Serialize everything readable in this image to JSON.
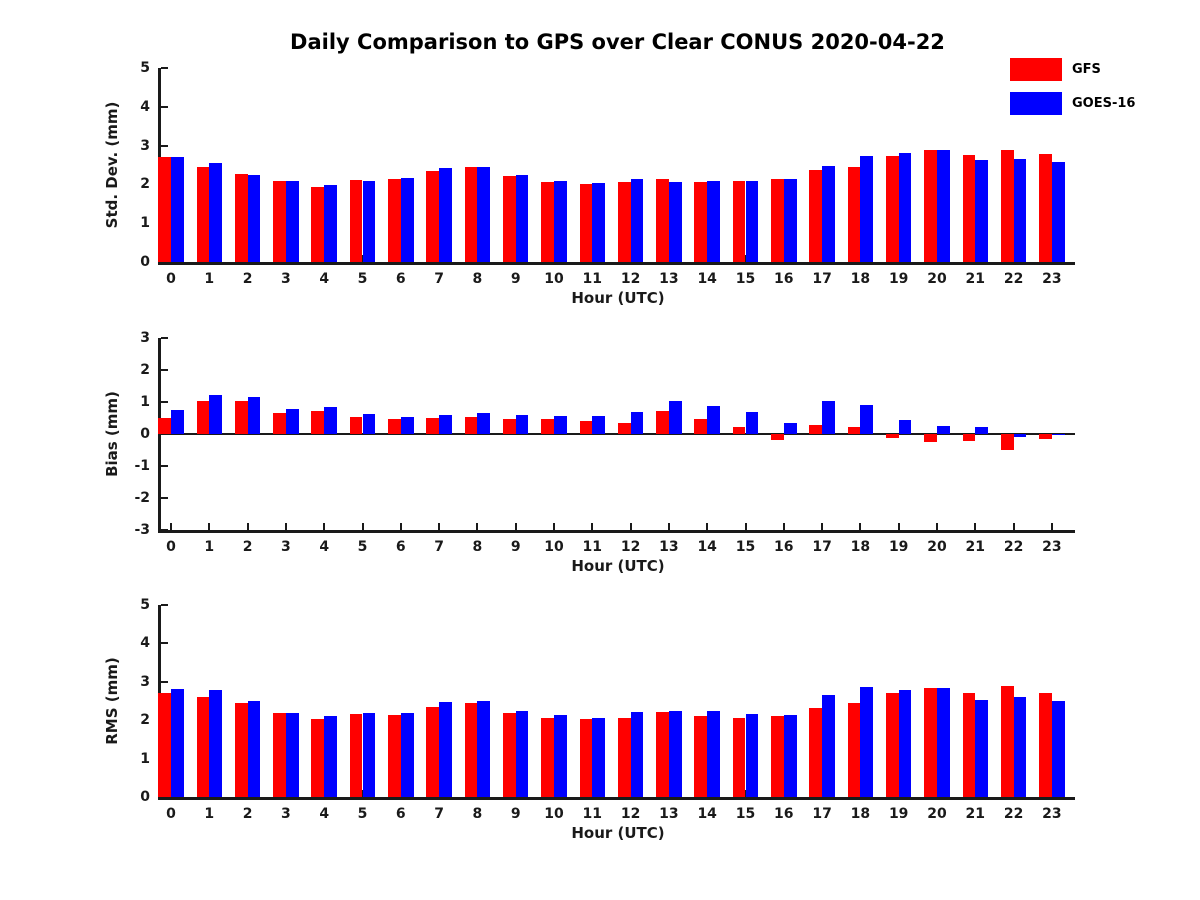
{
  "title": "Daily Comparison to GPS over Clear CONUS 2020-04-22",
  "legend": [
    {
      "label": "GFS",
      "color": "#ff0000"
    },
    {
      "label": "GOES-16",
      "color": "#0000ff"
    }
  ],
  "colors": {
    "gfs_red": "#ff0000",
    "goes_blue": "#0000ff",
    "axis": "#1a1a1a",
    "background": "#ffffff"
  },
  "chart_data": [
    {
      "type": "bar",
      "title": "",
      "ylabel": "Std. Dev. (mm)",
      "xlabel": "Hour (UTC)",
      "ylim": [
        0,
        5
      ],
      "yticks": [
        0,
        1,
        2,
        3,
        4,
        5
      ],
      "grid": false,
      "legend_position": "outside-upper-right",
      "categories": [
        0,
        1,
        2,
        3,
        4,
        5,
        6,
        7,
        8,
        9,
        10,
        11,
        12,
        13,
        14,
        15,
        16,
        17,
        18,
        19,
        20,
        21,
        22,
        23
      ],
      "series": [
        {
          "name": "GFS",
          "color": "#ff0000",
          "values": [
            2.7,
            2.46,
            2.28,
            2.1,
            1.93,
            2.12,
            2.13,
            2.34,
            2.44,
            2.22,
            2.06,
            2.02,
            2.07,
            2.13,
            2.07,
            2.08,
            2.15,
            2.37,
            2.46,
            2.74,
            2.88,
            2.76,
            2.88,
            2.79
          ]
        },
        {
          "name": "GOES-16",
          "color": "#0000ff",
          "values": [
            2.7,
            2.54,
            2.24,
            2.08,
            1.98,
            2.1,
            2.16,
            2.42,
            2.45,
            2.24,
            2.1,
            2.03,
            2.13,
            2.05,
            2.08,
            2.1,
            2.15,
            2.48,
            2.74,
            2.81,
            2.88,
            2.62,
            2.65,
            2.57
          ]
        }
      ]
    },
    {
      "type": "bar",
      "title": "",
      "ylabel": "Bias (mm)",
      "xlabel": "Hour (UTC)",
      "ylim": [
        -3,
        3
      ],
      "yticks": [
        -3,
        -2,
        -1,
        0,
        1,
        2,
        3
      ],
      "grid": false,
      "zero_line": true,
      "categories": [
        0,
        1,
        2,
        3,
        4,
        5,
        6,
        7,
        8,
        9,
        10,
        11,
        12,
        13,
        14,
        15,
        16,
        17,
        18,
        19,
        20,
        21,
        22,
        23
      ],
      "series": [
        {
          "name": "GFS",
          "color": "#ff0000",
          "values": [
            0.5,
            1.02,
            1.02,
            0.65,
            0.73,
            0.54,
            0.46,
            0.51,
            0.52,
            0.46,
            0.48,
            0.41,
            0.34,
            0.73,
            0.46,
            0.23,
            -0.19,
            0.28,
            0.22,
            -0.13,
            -0.26,
            -0.21,
            -0.5,
            -0.15
          ]
        },
        {
          "name": "GOES-16",
          "color": "#0000ff",
          "values": [
            0.75,
            1.22,
            1.16,
            0.78,
            0.85,
            0.63,
            0.53,
            0.6,
            0.65,
            0.59,
            0.55,
            0.56,
            0.7,
            1.04,
            0.88,
            0.7,
            0.34,
            1.02,
            0.9,
            0.45,
            0.25,
            0.22,
            -0.1,
            -0.03
          ]
        }
      ]
    },
    {
      "type": "bar",
      "title": "",
      "ylabel": "RMS (mm)",
      "xlabel": "Hour (UTC)",
      "ylim": [
        0,
        5
      ],
      "yticks": [
        0,
        1,
        2,
        3,
        4,
        5
      ],
      "grid": false,
      "categories": [
        0,
        1,
        2,
        3,
        4,
        5,
        6,
        7,
        8,
        9,
        10,
        11,
        12,
        13,
        14,
        15,
        16,
        17,
        18,
        19,
        20,
        21,
        22,
        23
      ],
      "series": [
        {
          "name": "GFS",
          "color": "#ff0000",
          "values": [
            2.7,
            2.6,
            2.45,
            2.18,
            2.04,
            2.17,
            2.14,
            2.35,
            2.46,
            2.2,
            2.07,
            2.02,
            2.07,
            2.22,
            2.1,
            2.05,
            2.12,
            2.33,
            2.44,
            2.7,
            2.85,
            2.72,
            2.88,
            2.72
          ]
        },
        {
          "name": "GOES-16",
          "color": "#0000ff",
          "values": [
            2.8,
            2.79,
            2.5,
            2.2,
            2.1,
            2.2,
            2.2,
            2.47,
            2.5,
            2.25,
            2.14,
            2.05,
            2.22,
            2.25,
            2.23,
            2.17,
            2.13,
            2.65,
            2.87,
            2.79,
            2.85,
            2.53,
            2.6,
            2.5
          ]
        }
      ]
    }
  ]
}
